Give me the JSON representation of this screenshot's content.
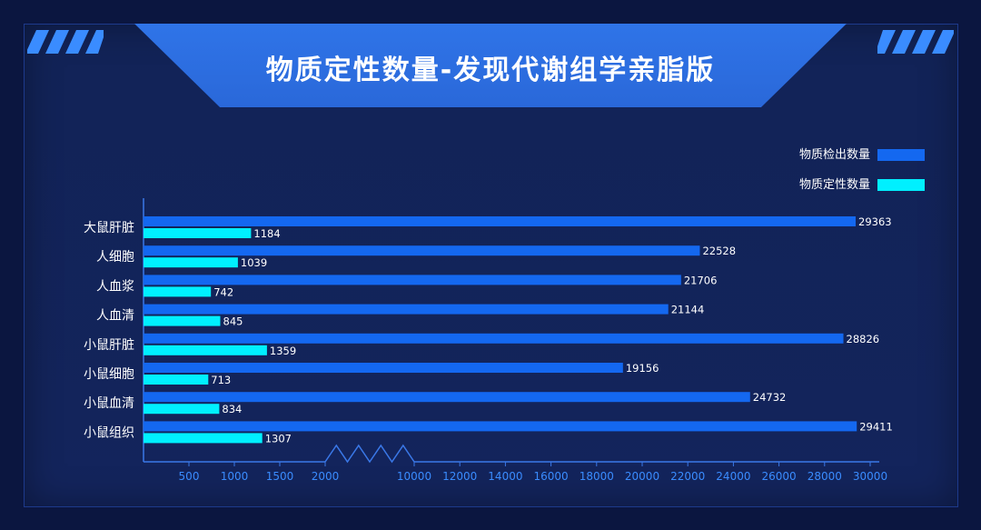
{
  "title": "物质定性数量-发现代谢组学亲脂版",
  "colors": {
    "detected": "#1468f0",
    "qualitative": "#00f0ff",
    "axis": "#3a78e8",
    "tick_label": "#3a8cff",
    "category_label": "#ffffff",
    "value_label": "#ffffff"
  },
  "chart_data": {
    "type": "bar",
    "orientation": "horizontal",
    "categories": [
      "大鼠肝脏",
      "人细胞",
      "人血浆",
      "人血清",
      "小鼠肝脏",
      "小鼠细胞",
      "小鼠血清",
      "小鼠组织"
    ],
    "series": [
      {
        "name": "物质检出数量",
        "color": "#1468f0",
        "values": [
          29363,
          22528,
          21706,
          21144,
          28826,
          19156,
          24732,
          29411
        ]
      },
      {
        "name": "物质定性数量",
        "color": "#00f0ff",
        "values": [
          1184,
          1039,
          742,
          845,
          1359,
          713,
          834,
          1307
        ]
      }
    ],
    "x_axis": {
      "broken": true,
      "break_between": [
        2000,
        10000
      ],
      "ticks": [
        500,
        1000,
        1500,
        2000,
        10000,
        12000,
        14000,
        16000,
        18000,
        20000,
        22000,
        24000,
        26000,
        28000,
        30000
      ],
      "tick_labels": [
        "500",
        "1000",
        "1500",
        "2000",
        "10000",
        "12000",
        "14000",
        "16000",
        "18000",
        "20000",
        "22000",
        "24000",
        "26000",
        "28000",
        "30000"
      ]
    },
    "legend_position": "top-right",
    "grid": false
  }
}
